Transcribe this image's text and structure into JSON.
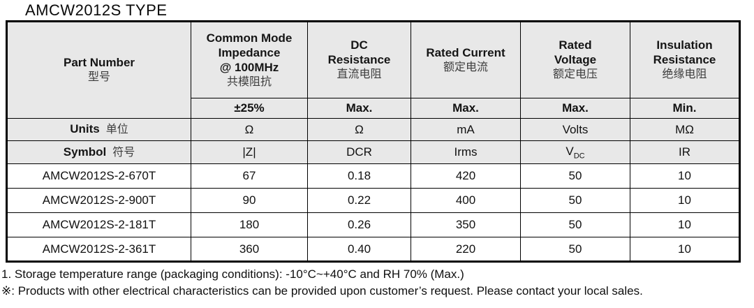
{
  "page": {
    "title": "AMCW2012S TYPE"
  },
  "colors": {
    "header_bg": "#e8e8e8",
    "border": "#000000",
    "text": "#111111"
  },
  "table": {
    "columns": [
      {
        "en": "Part Number",
        "cn": "型号"
      },
      {
        "en1": "Common Mode",
        "en2": "Impedance",
        "en3": "@ 100MHz",
        "cn": "共模阻抗",
        "spec": "±25%",
        "unit": "Ω",
        "symbol": "|Z|"
      },
      {
        "en1": "DC",
        "en2": "Resistance",
        "cn": "直流电阻",
        "spec": "Max.",
        "unit": "Ω",
        "symbol": "DCR"
      },
      {
        "en1": "Rated Current",
        "cn": "额定电流",
        "spec": "Max.",
        "unit": "mA",
        "symbol": "Irms"
      },
      {
        "en1": "Rated",
        "en2": "Voltage",
        "cn": "额定电压",
        "spec": "Max.",
        "unit": "Volts",
        "symbol": "V",
        "symbol_sub": "DC"
      },
      {
        "en1": "Insulation",
        "en2": "Resistance",
        "cn": "绝缘电阻",
        "spec": "Min.",
        "unit": "MΩ",
        "symbol": "IR"
      }
    ],
    "units_label": {
      "en": "Units",
      "cn": "单位"
    },
    "symbol_label": {
      "en": "Symbol",
      "cn": "符号"
    },
    "rows": [
      {
        "part": "AMCW2012S-2-670T",
        "impedance": "67",
        "dcr": "0.18",
        "current": "420",
        "voltage": "50",
        "ir": "10"
      },
      {
        "part": "AMCW2012S-2-900T",
        "impedance": "90",
        "dcr": "0.22",
        "current": "400",
        "voltage": "50",
        "ir": "10"
      },
      {
        "part": "AMCW2012S-2-181T",
        "impedance": "180",
        "dcr": "0.26",
        "current": "350",
        "voltage": "50",
        "ir": "10"
      },
      {
        "part": "AMCW2012S-2-361T",
        "impedance": "360",
        "dcr": "0.40",
        "current": "220",
        "voltage": "50",
        "ir": "10"
      }
    ]
  },
  "notes": {
    "line1": "1. Storage temperature range (packaging conditions): -10°C~+40°C and RH 70% (Max.)",
    "line2": "※: Products with other electrical characteristics can be provided upon customer’s request. Please contact your local sales."
  }
}
